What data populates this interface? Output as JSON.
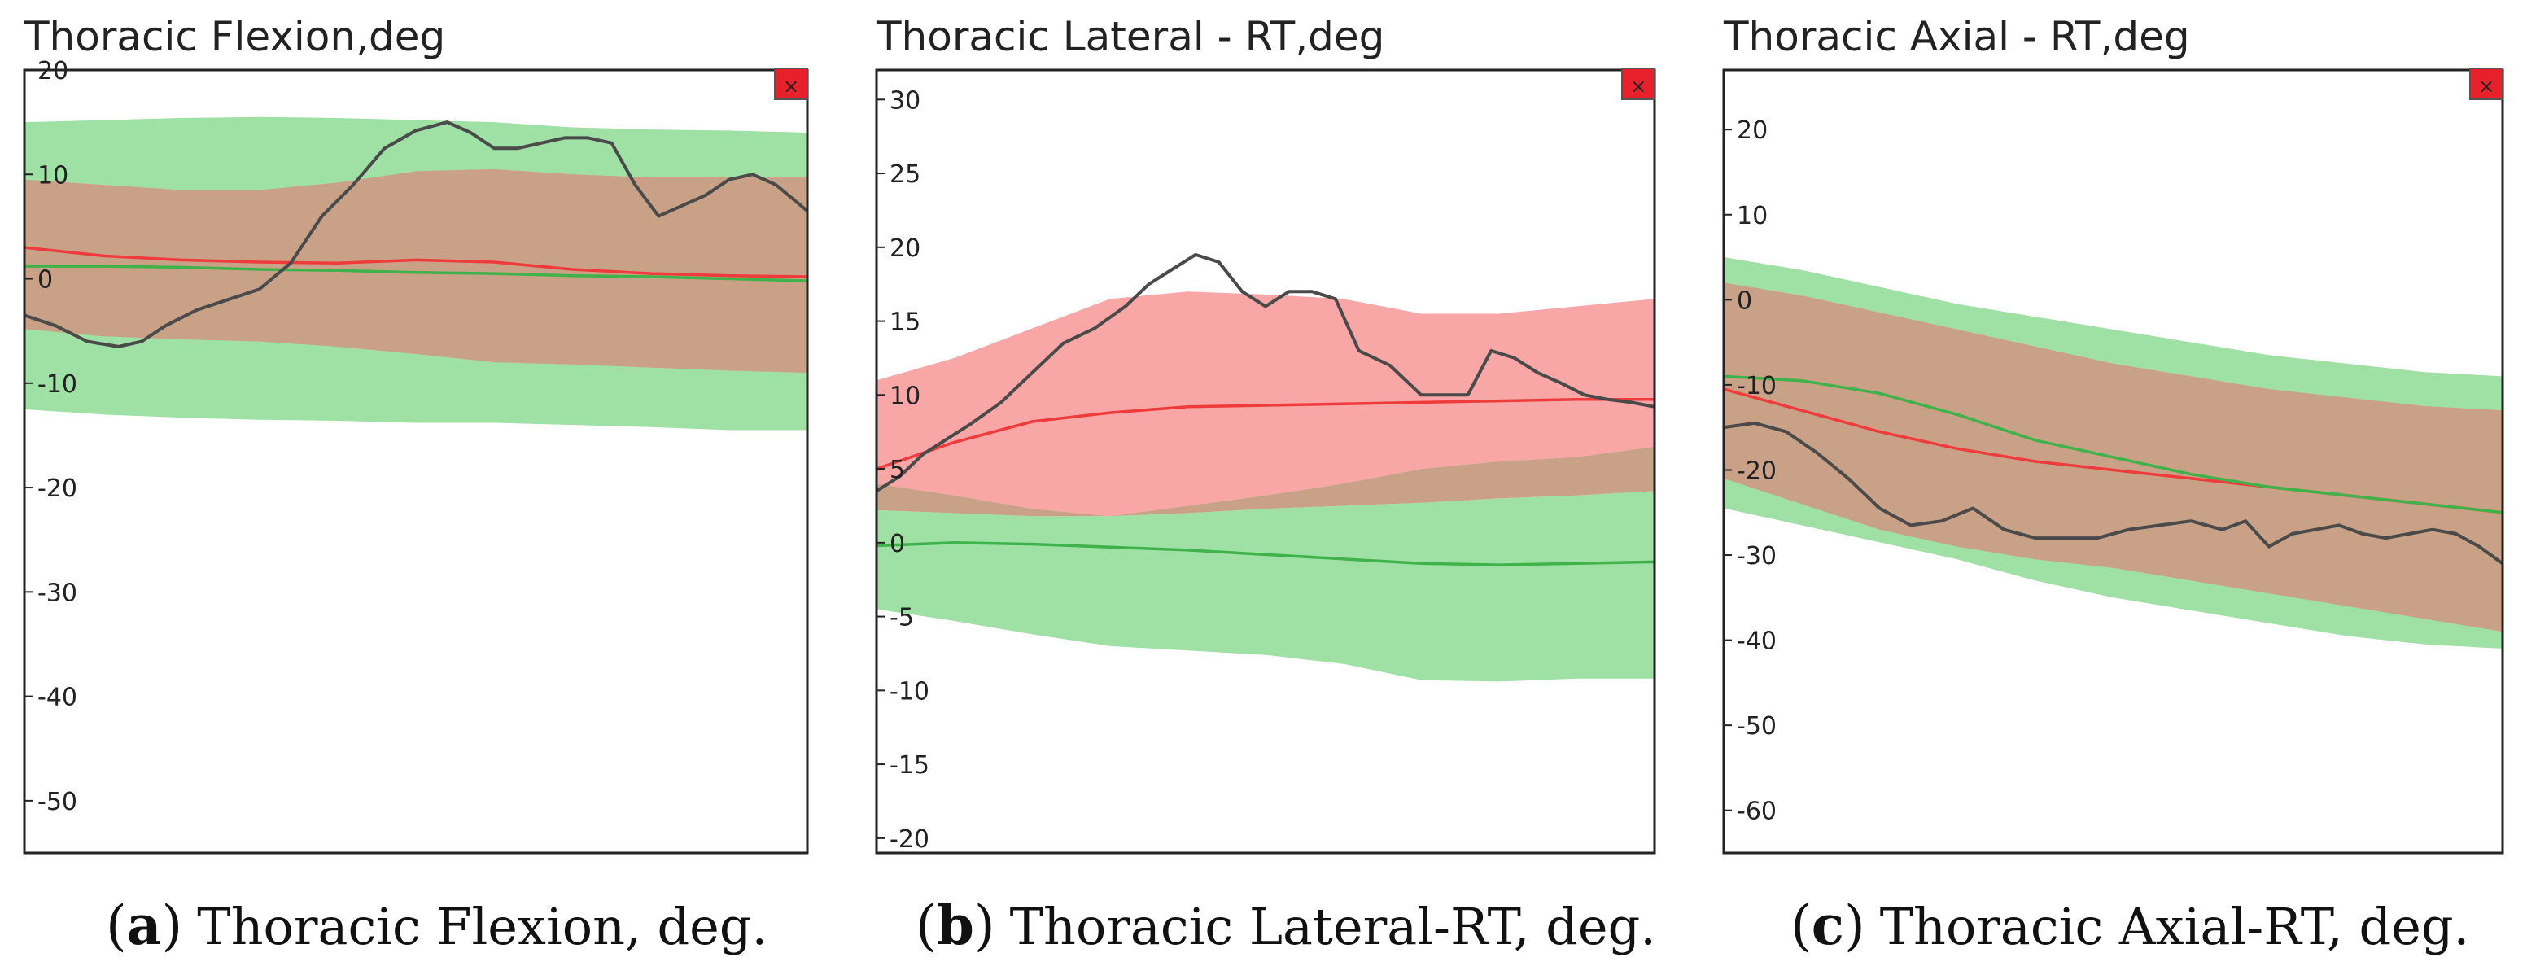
{
  "figure": {
    "captions": [
      {
        "letter": "a",
        "text": "Thoracic Flexion, deg."
      },
      {
        "letter": "b",
        "text": "Thoracic Lateral-RT, deg."
      },
      {
        "letter": "c",
        "text": "Thoracic Axial-RT, deg."
      }
    ]
  },
  "colors": {
    "green_band": "#9fe0a4",
    "red_band": "#f9a6a6",
    "overlap_band": "#c9a186",
    "red_line": "#ef3b3b",
    "green_line": "#3fb24a",
    "patient_line": "#4a4a4a",
    "close_button": "#e8202b"
  },
  "chart_data": [
    {
      "type": "line",
      "title": "Thoracic Flexion,deg",
      "close_icon": "×",
      "ylim": [
        -55,
        20
      ],
      "yticks": [
        20,
        10,
        0,
        -10,
        -20,
        -30,
        -40,
        -50
      ],
      "ytick_labels": [
        "20",
        "10",
        "0",
        "-10",
        "-20",
        "-30",
        "-40",
        "-50"
      ],
      "x": [
        0,
        10,
        20,
        30,
        40,
        50,
        60,
        70,
        80,
        90,
        100
      ],
      "bands": [
        {
          "name": "green normative range",
          "color": "green_band",
          "upper": [
            15,
            15.2,
            15.4,
            15.5,
            15.4,
            15.2,
            15.0,
            14.5,
            14.3,
            14.2,
            14
          ],
          "lower": [
            -12.5,
            -13,
            -13.3,
            -13.5,
            -13.6,
            -13.8,
            -13.8,
            -14,
            -14.2,
            -14.5,
            -14.5
          ]
        },
        {
          "name": "red normative range",
          "color": "red_band",
          "upper": [
            9.5,
            9.0,
            8.5,
            8.5,
            9.2,
            10.3,
            10.5,
            10.0,
            9.7,
            9.7,
            9.7
          ],
          "lower": [
            -4.8,
            -5.5,
            -5.8,
            -6.0,
            -6.5,
            -7.2,
            -8.0,
            -8.2,
            -8.5,
            -8.8,
            -9.0
          ]
        }
      ],
      "series": [
        {
          "name": "red mean",
          "color": "red_line",
          "x": [
            0,
            10,
            20,
            30,
            40,
            50,
            60,
            70,
            80,
            90,
            100
          ],
          "y": [
            3,
            2.2,
            1.8,
            1.6,
            1.5,
            1.8,
            1.6,
            0.9,
            0.5,
            0.3,
            0.2
          ]
        },
        {
          "name": "green mean",
          "color": "green_line",
          "x": [
            0,
            10,
            20,
            30,
            40,
            50,
            60,
            70,
            80,
            90,
            100
          ],
          "y": [
            1.2,
            1.2,
            1.1,
            0.9,
            0.8,
            0.6,
            0.5,
            0.3,
            0.2,
            0.0,
            -0.2
          ]
        },
        {
          "name": "patient",
          "color": "patient_line",
          "x": [
            0,
            4,
            8,
            12,
            15,
            18,
            22,
            26,
            30,
            34,
            38,
            42,
            46,
            50,
            54,
            57,
            60,
            63,
            66,
            69,
            72,
            75,
            78,
            81,
            84,
            87,
            90,
            93,
            96,
            100
          ],
          "y": [
            -3.5,
            -4.5,
            -6,
            -6.5,
            -6,
            -4.5,
            -3,
            -2,
            -1,
            1.5,
            6,
            9,
            12.5,
            14.2,
            15,
            14,
            12.5,
            12.5,
            13,
            13.5,
            13.5,
            13,
            9,
            6,
            7,
            8,
            9.5,
            10,
            9,
            6.5
          ]
        }
      ]
    },
    {
      "type": "line",
      "title": "Thoracic Lateral - RT,deg",
      "close_icon": "×",
      "ylim": [
        -21,
        32
      ],
      "yticks": [
        30,
        25,
        20,
        15,
        10,
        5,
        0,
        -5,
        -10,
        -15,
        -20
      ],
      "ytick_labels": [
        "30",
        "25",
        "20",
        "15",
        "10",
        "5",
        "0",
        "-5",
        "-10",
        "-15",
        "-20"
      ],
      "x": [
        0,
        10,
        20,
        30,
        40,
        50,
        60,
        70,
        80,
        90,
        100
      ],
      "bands": [
        {
          "name": "green normative range",
          "color": "green_band",
          "upper": [
            2.2,
            2.0,
            1.8,
            1.8,
            2.0,
            2.3,
            2.5,
            2.7,
            3.0,
            3.2,
            3.5
          ],
          "lower": [
            -4.5,
            -5.3,
            -6.2,
            -7.0,
            -7.3,
            -7.6,
            -8.2,
            -9.3,
            -9.4,
            -9.2,
            -9.2
          ]
        },
        {
          "name": "red normative range",
          "color": "red_band",
          "upper": [
            11,
            12.5,
            14.5,
            16.5,
            17.0,
            16.8,
            16.5,
            15.5,
            15.5,
            16.0,
            16.5
          ],
          "lower": [
            4.0,
            3.2,
            2.3,
            1.8,
            2.5,
            3.2,
            4.0,
            5.0,
            5.5,
            5.8,
            6.5
          ]
        }
      ],
      "series": [
        {
          "name": "red mean",
          "color": "red_line",
          "x": [
            0,
            10,
            20,
            30,
            40,
            50,
            60,
            70,
            80,
            90,
            100
          ],
          "y": [
            5,
            6.8,
            8.2,
            8.8,
            9.2,
            9.3,
            9.4,
            9.5,
            9.6,
            9.7,
            9.7
          ]
        },
        {
          "name": "green mean",
          "color": "green_line",
          "x": [
            0,
            10,
            20,
            30,
            40,
            50,
            60,
            70,
            80,
            90,
            100
          ],
          "y": [
            -0.2,
            0,
            -0.1,
            -0.3,
            -0.5,
            -0.8,
            -1.1,
            -1.4,
            -1.5,
            -1.4,
            -1.3
          ]
        },
        {
          "name": "patient",
          "color": "patient_line",
          "x": [
            0,
            3,
            6,
            9,
            12,
            16,
            20,
            24,
            28,
            32,
            35,
            38,
            41,
            44,
            47,
            50,
            53,
            56,
            59,
            62,
            66,
            70,
            73,
            76,
            79,
            82,
            85,
            88,
            91,
            94,
            97,
            100
          ],
          "y": [
            3.5,
            4.5,
            6,
            7,
            8,
            9.5,
            11.5,
            13.5,
            14.5,
            16,
            17.5,
            18.5,
            19.5,
            19,
            17,
            16,
            17,
            17,
            16.5,
            13,
            12,
            10,
            10,
            10,
            13,
            12.5,
            11.5,
            10.8,
            10,
            9.7,
            9.5,
            9.2
          ]
        }
      ]
    },
    {
      "type": "line",
      "title": "Thoracic Axial - RT,deg",
      "close_icon": "×",
      "ylim": [
        -65,
        27
      ],
      "yticks": [
        20,
        10,
        0,
        -10,
        -20,
        -30,
        -40,
        -50,
        -60
      ],
      "ytick_labels": [
        "20",
        "10",
        "0",
        "-10",
        "-20",
        "-30",
        "-40",
        "-50",
        "-60"
      ],
      "x": [
        0,
        10,
        20,
        30,
        40,
        50,
        60,
        70,
        80,
        90,
        100
      ],
      "bands": [
        {
          "name": "green normative range",
          "color": "green_band",
          "upper": [
            5,
            3.5,
            1.5,
            -0.5,
            -2,
            -3.5,
            -5,
            -6.5,
            -7.5,
            -8.5,
            -9
          ],
          "lower": [
            -24.5,
            -26.5,
            -28.5,
            -30.5,
            -33,
            -35,
            -36.5,
            -38,
            -39.5,
            -40.5,
            -41
          ]
        },
        {
          "name": "red normative range",
          "color": "red_band",
          "upper": [
            2,
            0.5,
            -1.5,
            -3.5,
            -5.5,
            -7.5,
            -9,
            -10.5,
            -11.5,
            -12.5,
            -13
          ]
        },
        {
          "name": "red normative range lower",
          "color": "red_band",
          "lower": [
            -21,
            -24,
            -27,
            -29,
            -30.5,
            -31.5,
            -33,
            -34.5,
            -36,
            -37.5,
            -39
          ]
        }
      ],
      "series": [
        {
          "name": "red mean",
          "color": "red_line",
          "x": [
            0,
            10,
            20,
            30,
            40,
            50,
            60,
            70,
            80,
            90,
            100
          ],
          "y": [
            -10.5,
            -13,
            -15.5,
            -17.5,
            -19,
            -20,
            -21,
            -22,
            -23,
            -24,
            -25
          ]
        },
        {
          "name": "green mean",
          "color": "green_line",
          "x": [
            0,
            10,
            20,
            30,
            40,
            50,
            60,
            70,
            80,
            90,
            100
          ],
          "y": [
            -9,
            -9.5,
            -11,
            -13.5,
            -16.5,
            -18.5,
            -20.5,
            -22,
            -23,
            -24,
            -25
          ]
        },
        {
          "name": "patient",
          "color": "patient_line",
          "x": [
            0,
            4,
            8,
            12,
            16,
            20,
            24,
            28,
            32,
            36,
            40,
            44,
            48,
            52,
            56,
            60,
            64,
            67,
            70,
            73,
            76,
            79,
            82,
            85,
            88,
            91,
            94,
            97,
            100
          ],
          "y": [
            -15,
            -14.5,
            -15.5,
            -18,
            -21,
            -24.5,
            -26.5,
            -26,
            -24.5,
            -27,
            -28,
            -28,
            -28,
            -27,
            -26.5,
            -26,
            -27,
            -26,
            -29,
            -27.5,
            -27,
            -26.5,
            -27.5,
            -28,
            -27.5,
            -27,
            -27.5,
            -29,
            -31
          ]
        }
      ]
    }
  ]
}
